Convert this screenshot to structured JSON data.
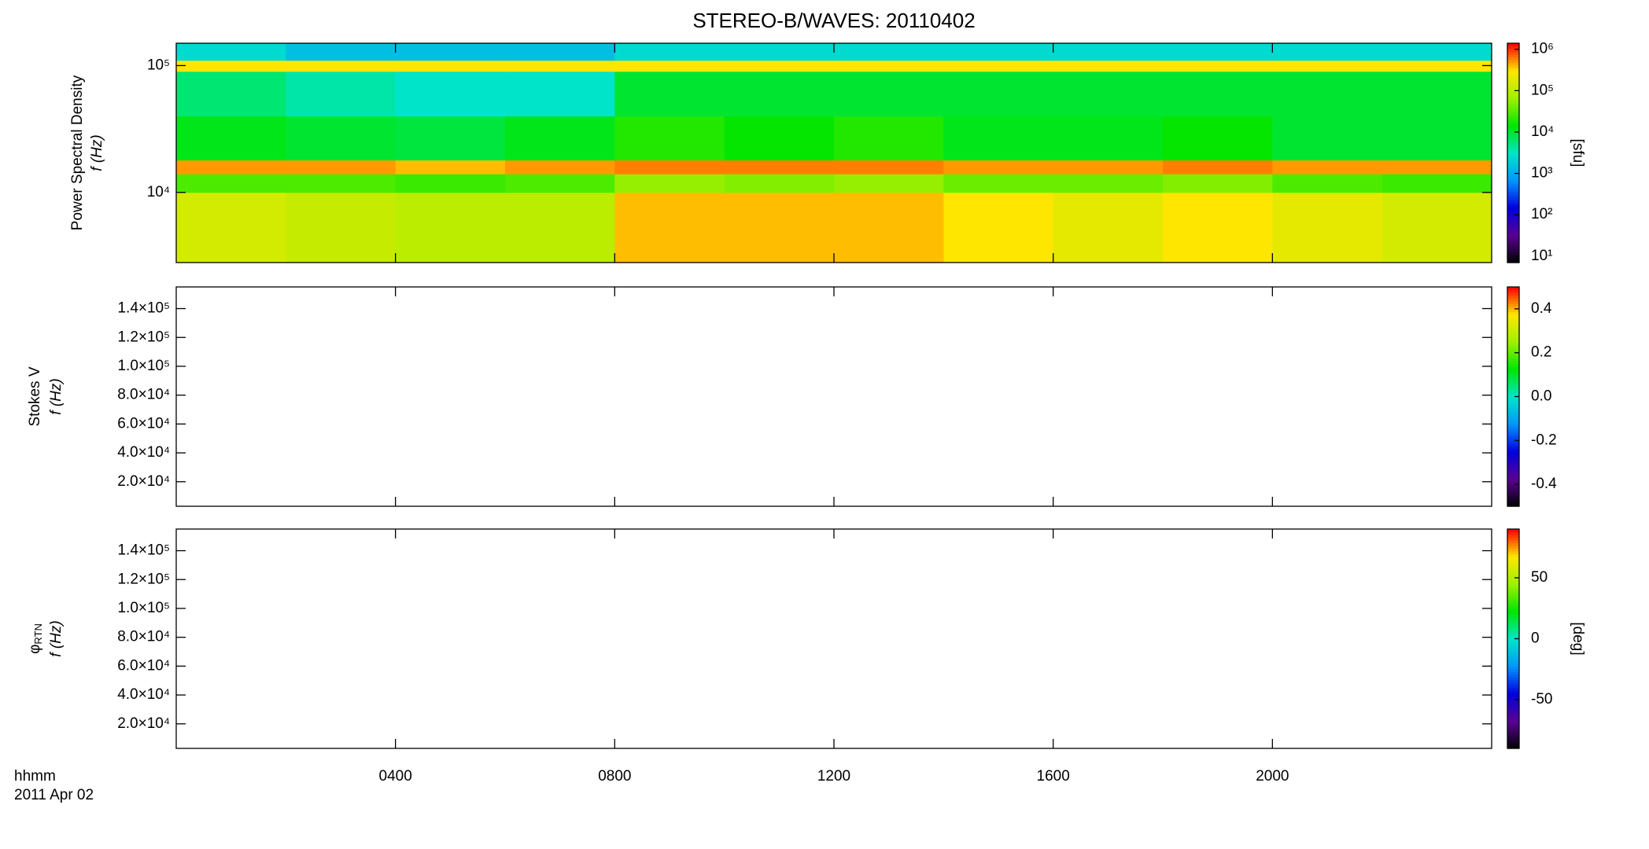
{
  "chart_data": [
    {
      "type": "heatmap",
      "title": "STEREO-B/WAVES: 20110402",
      "ylabel": "Power Spectral Density",
      "ylabel2": "f (Hz)",
      "ylog": true,
      "xlim": [
        0,
        24
      ],
      "ylim": [
        2800,
        150000
      ],
      "yticks": [
        {
          "value": 10000,
          "label": "10⁴"
        },
        {
          "value": 100000,
          "label": "10⁵"
        }
      ],
      "zlog": true,
      "zlim": [
        7,
        1400000
      ],
      "zticks": [
        {
          "value": 10,
          "label": "10¹"
        },
        {
          "value": 100,
          "label": "10²"
        },
        {
          "value": 1000,
          "label": "10³"
        },
        {
          "value": 10000,
          "label": "10⁴"
        },
        {
          "value": 100000,
          "label": "10⁵"
        },
        {
          "value": 1000000,
          "label": "10⁶"
        }
      ],
      "zlabel": "[sfu]",
      "colormap": [
        "#000000",
        "#5a0096",
        "#0000dc",
        "#0096ff",
        "#00e6c8",
        "#00e600",
        "#a0f000",
        "#ffe600",
        "#ff0000"
      ],
      "x_edges": [
        0,
        2,
        4,
        6,
        8,
        10,
        12,
        14,
        16,
        18,
        20,
        22,
        24
      ],
      "y_edges": [
        2800,
        10000,
        14000,
        18000,
        40000,
        90000,
        110000,
        150000
      ],
      "z": [
        [
          150000,
          120000,
          100000,
          100000,
          400000,
          400000,
          400000,
          300000,
          200000,
          300000,
          200000,
          150000
        ],
        [
          30000,
          30000,
          25000,
          30000,
          60000,
          50000,
          60000,
          40000,
          40000,
          50000,
          30000,
          25000
        ],
        [
          500000,
          500000,
          400000,
          500000,
          600000,
          600000,
          600000,
          500000,
          500000,
          600000,
          500000,
          500000
        ],
        [
          12000,
          10000,
          9000,
          12000,
          20000,
          15000,
          20000,
          12000,
          12000,
          15000,
          10000,
          10000
        ],
        [
          6000,
          4000,
          3000,
          3000,
          10000,
          10000,
          10000,
          10000,
          10000,
          10000,
          10000,
          10000
        ],
        [
          300000,
          300000,
          300000,
          300000,
          300000,
          300000,
          300000,
          300000,
          300000,
          300000,
          300000,
          300000
        ],
        [
          2500,
          1500,
          1500,
          1500,
          2500,
          2500,
          2500,
          2500,
          2500,
          2500,
          2500,
          2500
        ]
      ]
    },
    {
      "type": "heatmap",
      "ylabel": "Stokes V",
      "ylabel2": "f (Hz)",
      "ylog": false,
      "xlim": [
        0,
        24
      ],
      "ylim": [
        3000,
        155000
      ],
      "yticks": [
        {
          "value": 20000,
          "label": "2.0×10⁴"
        },
        {
          "value": 40000,
          "label": "4.0×10⁴"
        },
        {
          "value": 60000,
          "label": "6.0×10⁴"
        },
        {
          "value": 80000,
          "label": "8.0×10⁴"
        },
        {
          "value": 100000,
          "label": "1.0×10⁵"
        },
        {
          "value": 120000,
          "label": "1.2×10⁵"
        },
        {
          "value": 140000,
          "label": "1.4×10⁵"
        }
      ],
      "zlog": false,
      "zlim": [
        -0.5,
        0.5
      ],
      "zticks": [
        -0.4,
        -0.2,
        {
          "value": 0,
          "label": "0.0"
        },
        0.2,
        0.4
      ],
      "colormap": [
        "#000000",
        "#5a0096",
        "#0000dc",
        "#0096ff",
        "#00e6c8",
        "#00e600",
        "#a0f000",
        "#ffe600",
        "#ff0000"
      ]
    },
    {
      "type": "heatmap",
      "ylabel": "φ",
      "ylabel_sub": "RTN",
      "ylabel2": "f (Hz)",
      "ylog": false,
      "xlim": [
        0,
        24
      ],
      "ylim": [
        3000,
        155000
      ],
      "yticks": [
        {
          "value": 20000,
          "label": "2.0×10⁴"
        },
        {
          "value": 40000,
          "label": "4.0×10⁴"
        },
        {
          "value": 60000,
          "label": "6.0×10⁴"
        },
        {
          "value": 80000,
          "label": "8.0×10⁴"
        },
        {
          "value": 100000,
          "label": "1.0×10⁵"
        },
        {
          "value": 120000,
          "label": "1.2×10⁵"
        },
        {
          "value": 140000,
          "label": "1.4×10⁵"
        }
      ],
      "zlog": false,
      "zlim": [
        -90,
        90
      ],
      "zticks": [
        -50,
        0,
        50
      ],
      "zlabel": "[deg]",
      "colormap": [
        "#000000",
        "#5a0096",
        "#0000dc",
        "#0096ff",
        "#00e6c8",
        "#00e600",
        "#a0f000",
        "#ffe600",
        "#ff0000"
      ],
      "xticks": [
        {
          "value": 4,
          "label": "0400"
        },
        {
          "value": 8,
          "label": "0800"
        },
        {
          "value": 12,
          "label": "1200"
        },
        {
          "value": 16,
          "label": "1600"
        },
        {
          "value": 20,
          "label": "2000"
        }
      ],
      "xlabel": "hhmm",
      "date_label": "2011 Apr 02"
    }
  ]
}
